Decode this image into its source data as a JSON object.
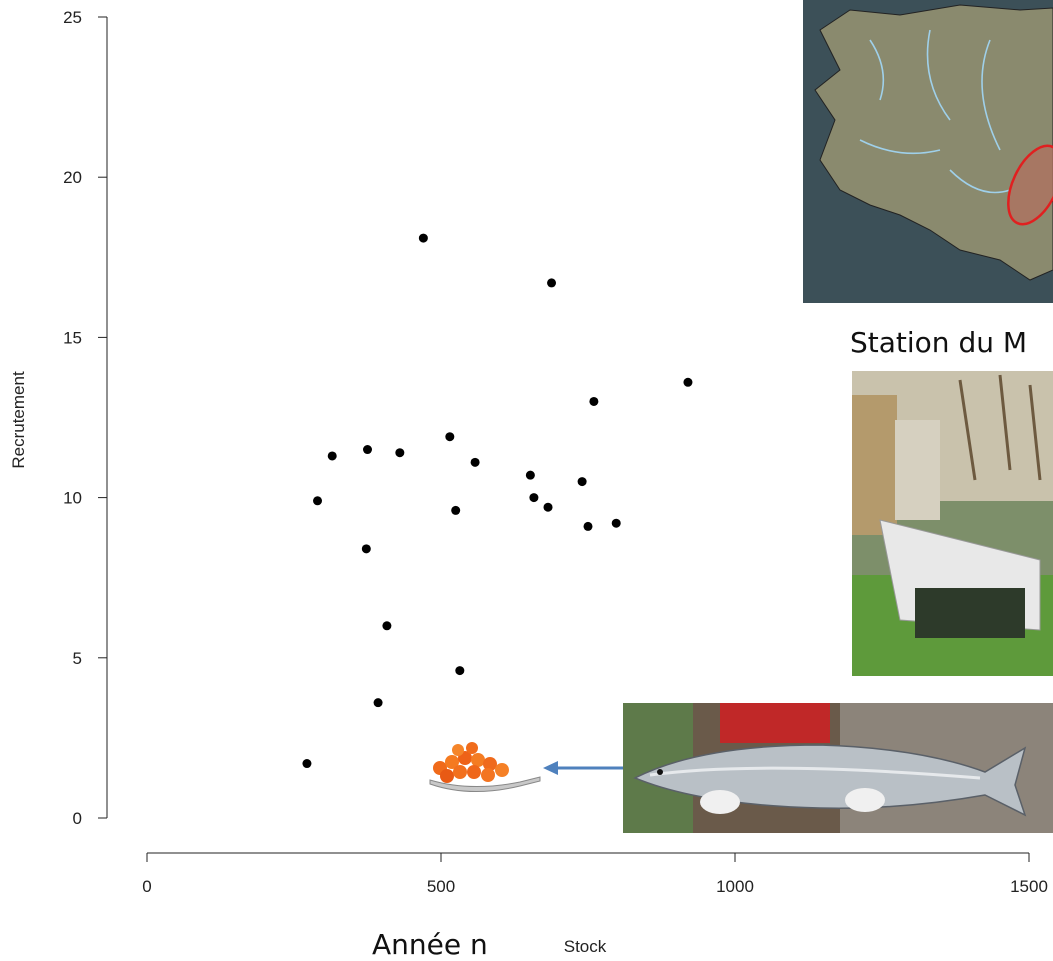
{
  "chart_data": {
    "type": "scatter",
    "title": "",
    "xlabel": "Stock",
    "ylabel": "Recrutement",
    "xlim": [
      0,
      1500
    ],
    "ylim": [
      0,
      25
    ],
    "xticks": [
      "0",
      "500",
      "1000",
      "1500"
    ],
    "yticks": [
      "0",
      "5",
      "10",
      "15",
      "20",
      "25"
    ],
    "grid": false,
    "series": [
      {
        "color": "#000000",
        "points": [
          {
            "x": 272,
            "y": 1.7
          },
          {
            "x": 290,
            "y": 9.9
          },
          {
            "x": 315,
            "y": 11.3
          },
          {
            "x": 373,
            "y": 8.4
          },
          {
            "x": 375,
            "y": 11.5
          },
          {
            "x": 393,
            "y": 3.6
          },
          {
            "x": 408,
            "y": 6.0
          },
          {
            "x": 430,
            "y": 11.4
          },
          {
            "x": 470,
            "y": 18.1
          },
          {
            "x": 515,
            "y": 11.9
          },
          {
            "x": 525,
            "y": 9.6
          },
          {
            "x": 532,
            "y": 4.6
          },
          {
            "x": 558,
            "y": 11.1
          },
          {
            "x": 652,
            "y": 10.7
          },
          {
            "x": 658,
            "y": 10.0
          },
          {
            "x": 682,
            "y": 9.7
          },
          {
            "x": 688,
            "y": 16.7
          },
          {
            "x": 740,
            "y": 10.5
          },
          {
            "x": 750,
            "y": 9.1
          },
          {
            "x": 760,
            "y": 13.0
          },
          {
            "x": 798,
            "y": 9.2
          },
          {
            "x": 920,
            "y": 13.6
          }
        ]
      }
    ]
  },
  "annotations": {
    "year_label": "Année n",
    "station_label": "Station du M"
  },
  "images": {
    "map": "map-of-brittany-rivers",
    "station": "trapping-station-photo",
    "salmon": "salmon-photo",
    "eggs": "salmon-eggs-spoon"
  },
  "colors": {
    "arrow": "#4f81bd",
    "map_sea": "#3c5058",
    "map_land": "#8a8a6e",
    "map_highlight": "#e02020"
  }
}
